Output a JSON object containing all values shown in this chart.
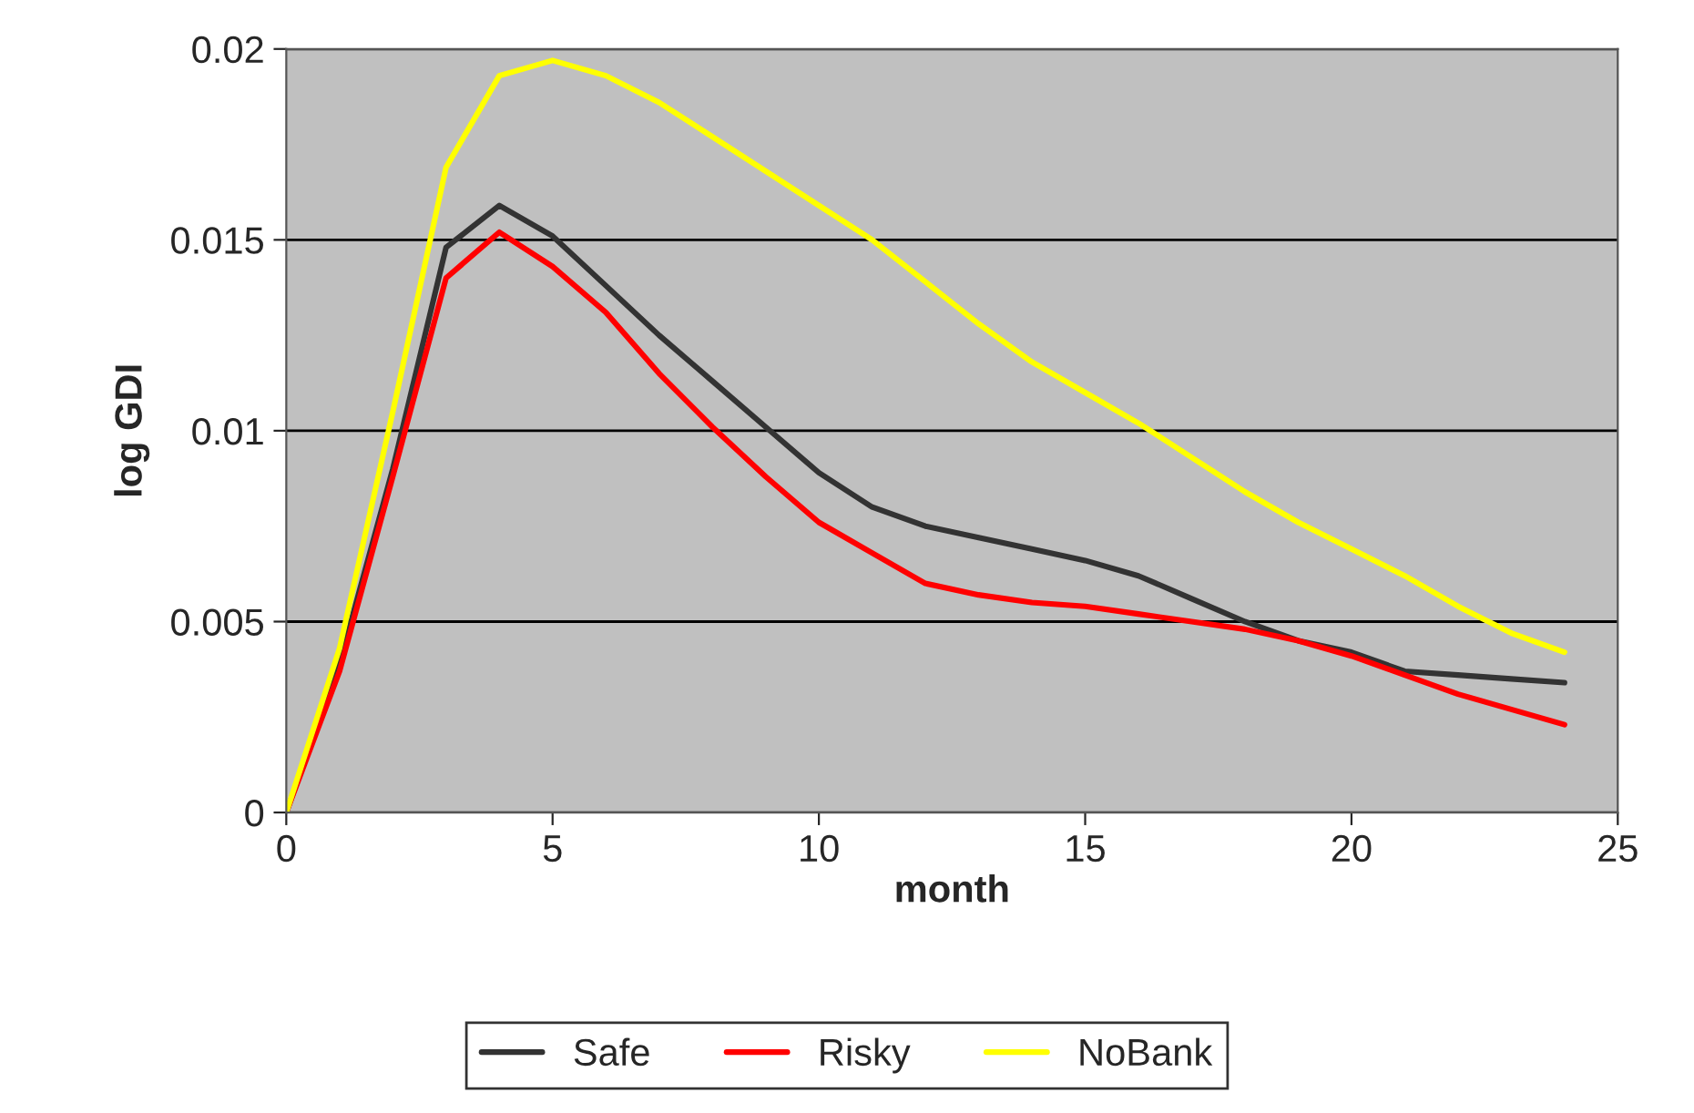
{
  "chart_data": {
    "type": "line",
    "xlabel": "month",
    "ylabel": "log GDI",
    "x": [
      0,
      1,
      2,
      3,
      4,
      5,
      6,
      7,
      8,
      9,
      10,
      11,
      12,
      13,
      14,
      15,
      16,
      17,
      18,
      19,
      20,
      21,
      22,
      23,
      24
    ],
    "series": [
      {
        "name": "Safe",
        "color": "#333333",
        "values": [
          0,
          0.0039,
          0.009,
          0.0148,
          0.0159,
          0.0151,
          0.0138,
          0.0125,
          0.0113,
          0.0101,
          0.0089,
          0.008,
          0.0075,
          0.0072,
          0.0069,
          0.0066,
          0.0062,
          0.0056,
          0.005,
          0.0045,
          0.0042,
          0.0037,
          0.0036,
          0.0035,
          0.0034
        ]
      },
      {
        "name": "Risky",
        "color": "#ff0000",
        "values": [
          0,
          0.0037,
          0.0088,
          0.014,
          0.0152,
          0.0143,
          0.0131,
          0.0115,
          0.0101,
          0.0088,
          0.0076,
          0.0068,
          0.006,
          0.0057,
          0.0055,
          0.0054,
          0.0052,
          0.005,
          0.0048,
          0.0045,
          0.0041,
          0.0036,
          0.0031,
          0.0027,
          0.0023
        ]
      },
      {
        "name": "NoBank",
        "color": "#ffff00",
        "values": [
          0,
          0.0043,
          0.0105,
          0.0169,
          0.0193,
          0.0197,
          0.0193,
          0.0186,
          0.0177,
          0.0168,
          0.0159,
          0.015,
          0.0139,
          0.0128,
          0.0118,
          0.011,
          0.0102,
          0.0093,
          0.0084,
          0.0076,
          0.0069,
          0.0062,
          0.0054,
          0.0047,
          0.0042
        ]
      }
    ],
    "xlim": [
      0,
      25
    ],
    "xticks": [
      0,
      5,
      10,
      15,
      20,
      25
    ],
    "ylim": [
      0,
      0.02
    ],
    "yticks": [
      0,
      0.005,
      0.01,
      0.015,
      0.02
    ],
    "grid": "y",
    "legend": "bottom",
    "marker": "none",
    "line_style": "solid"
  }
}
